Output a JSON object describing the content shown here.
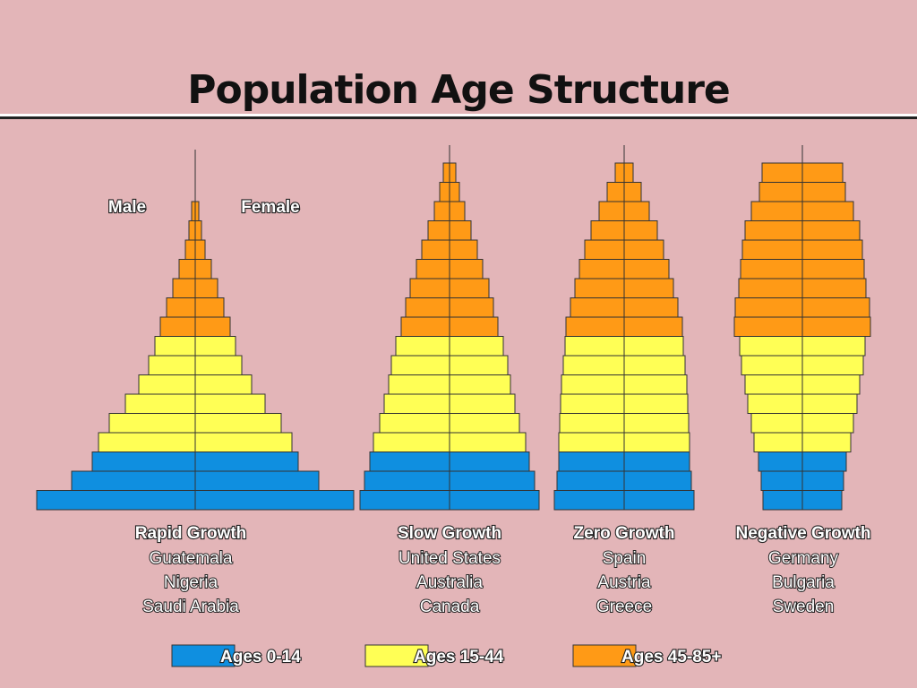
{
  "header": {
    "title": "Population Age Structure"
  },
  "sex_labels": [
    "Male",
    "Female"
  ],
  "groups": [
    {
      "title": "Rapid Growth",
      "countries": [
        "Guatemala",
        "Nigeria",
        "Saudi Arabia"
      ]
    },
    {
      "title": "Slow Growth",
      "countries": [
        "United States",
        "Australia",
        "Canada"
      ]
    },
    {
      "title": "Zero Growth",
      "countries": [
        "Spain",
        "Austria",
        "Greece"
      ]
    },
    {
      "title": "Negative Growth",
      "countries": [
        "Germany",
        "Bulgaria",
        "Sweden"
      ]
    }
  ],
  "legend": [
    "Ages 0-14",
    "Ages 15-44",
    "Ages 45-85+"
  ]
}
